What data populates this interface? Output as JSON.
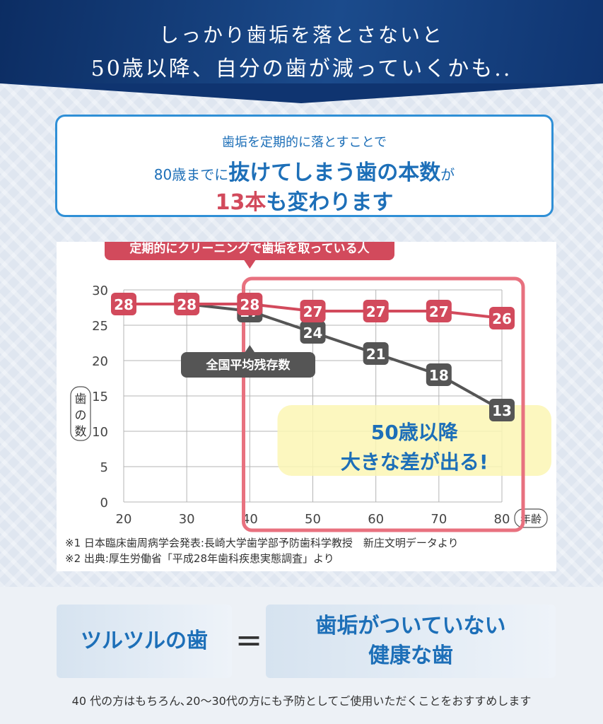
{
  "header": {
    "line1": "しっかり歯垢を落とさないと",
    "line2": "50歳以降、自分の歯が減っていくかも..",
    "colors": {
      "navy": "#0c2d63",
      "blue": "#1d6fb8",
      "red": "#d24a5c",
      "gray": "#555555"
    }
  },
  "message": {
    "line1": "歯垢を定期的に落とすことで",
    "line2_pre": "80歳までに",
    "line2_strong": "抜けてしまう歯の本数",
    "line2_post": "が",
    "line3_red": "13本",
    "line3_post": "も変わります"
  },
  "chart_data": {
    "type": "line",
    "ylabel": "歯の数",
    "xlabel": "年齢",
    "x": [
      20,
      30,
      40,
      50,
      60,
      70,
      80
    ],
    "ylim": [
      0,
      30
    ],
    "yticks": [
      0,
      5,
      10,
      15,
      20,
      25,
      30
    ],
    "grid": true,
    "series": [
      {
        "name": "定期的にクリーニングで歯垢を取っている人",
        "color": "#d24a5c",
        "values": [
          28,
          28,
          28,
          27,
          27,
          27,
          26
        ]
      },
      {
        "name": "全国平均残存数",
        "color": "#555555",
        "values": [
          28,
          28,
          27,
          24,
          21,
          18,
          13
        ]
      }
    ],
    "highlight_text": [
      "50歳以降",
      "大きな差が出る!"
    ],
    "notes": [
      "※1 日本臨床歯周病学会発表:長崎大学歯学部予防歯科学教授　新庄文明データより",
      "※2 出典:厚生労働省「平成28年歯科疾患実態調査」より"
    ]
  },
  "bottom": {
    "left": "ツルツルの歯",
    "equals": "=",
    "right_line1": "歯垢がついていない",
    "right_line2": "健康な歯",
    "footer": "40 代の方はもちろん､20〜30代の方にも予防としてご使用いただくことをおすすめします"
  }
}
